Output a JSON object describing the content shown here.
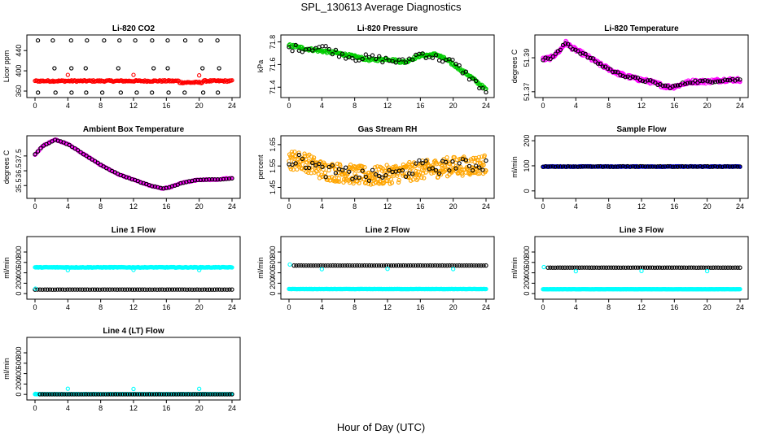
{
  "figure": {
    "title": "SPL_130613  Average Diagnostics",
    "xlabel": "Hour of Day (UTC)"
  },
  "colors": {
    "black": "#000000",
    "red": "#ff0000",
    "green": "#00cc00",
    "magenta": "#ff00ff",
    "orange": "#ffa500",
    "blue": "#0000ff",
    "cyan": "#00ffff"
  },
  "chart_data": [
    {
      "type": "scatter",
      "title": "Li-820 CO2",
      "ylabel": "Licor ppm",
      "xlim": [
        0,
        24
      ],
      "ylim": [
        352,
        466
      ],
      "xticks": [
        "0",
        "4",
        "8",
        "12",
        "16",
        "20",
        "24"
      ],
      "yticks": [
        "360",
        "400",
        "440"
      ],
      "series": [
        {
          "color": "black",
          "pattern": "levels",
          "levels": [
            357,
            405,
            460
          ],
          "x_step": 2,
          "x_start": 0.1
        },
        {
          "color": "red",
          "pattern": "flat",
          "base": 380,
          "bump": 1.5,
          "dip_at": 19,
          "dip": -3
        },
        {
          "color": "red",
          "pattern": "points",
          "x": [
            4,
            12,
            20
          ],
          "y": [
            392,
            392,
            391
          ]
        }
      ]
    },
    {
      "type": "scatter",
      "title": "Li-820 Pressure",
      "ylabel": "kPa",
      "xlim": [
        0,
        24
      ],
      "ylim": [
        71.33,
        71.84
      ],
      "xticks": [
        "0",
        "4",
        "8",
        "12",
        "16",
        "20",
        "24"
      ],
      "yticks": [
        "71.4",
        "71.6",
        "71.8"
      ],
      "series": [
        {
          "color": "green",
          "pattern": "curve",
          "x": [
            0,
            2,
            4,
            6,
            8,
            10,
            12,
            14,
            16,
            18,
            19,
            20,
            22,
            24
          ],
          "y": [
            71.77,
            71.74,
            71.72,
            71.7,
            71.67,
            71.64,
            71.65,
            71.62,
            71.68,
            71.69,
            71.65,
            71.6,
            71.5,
            71.38
          ],
          "noise": 0.012,
          "density": 240
        },
        {
          "color": "black",
          "pattern": "curve",
          "x": [
            0,
            2,
            4,
            6,
            8,
            10,
            12,
            14,
            16,
            18,
            19,
            20,
            22,
            24
          ],
          "y": [
            71.75,
            71.74,
            71.76,
            71.7,
            71.66,
            71.66,
            71.64,
            71.62,
            71.7,
            71.66,
            71.64,
            71.62,
            71.49,
            71.36
          ],
          "noise": 0.03,
          "density": 60
        }
      ]
    },
    {
      "type": "scatter",
      "title": "Li-820 Temperature",
      "ylabel": "degrees C",
      "xlim": [
        0,
        24
      ],
      "ylim": [
        51.368,
        51.402
      ],
      "xticks": [
        "0",
        "4",
        "8",
        "12",
        "16",
        "20",
        "24"
      ],
      "yticks": [
        "51.37",
        "51.39"
      ],
      "series": [
        {
          "color": "magenta",
          "pattern": "curve",
          "x": [
            0,
            1,
            2,
            2.8,
            3.5,
            5,
            7,
            9,
            11,
            13,
            15,
            16,
            18,
            20,
            22,
            24
          ],
          "y": [
            51.389,
            51.39,
            51.394,
            51.399,
            51.396,
            51.392,
            51.386,
            51.381,
            51.378,
            51.376,
            51.373,
            51.373,
            51.376,
            51.376,
            51.377,
            51.377
          ],
          "noise": 0.0012,
          "density": 260
        },
        {
          "color": "black",
          "pattern": "curve",
          "x": [
            0,
            1,
            2,
            2.8,
            3.5,
            5,
            7,
            9,
            11,
            13,
            15,
            16,
            18,
            20,
            22,
            24
          ],
          "y": [
            51.389,
            51.39,
            51.394,
            51.399,
            51.396,
            51.392,
            51.386,
            51.381,
            51.378,
            51.376,
            51.373,
            51.373,
            51.376,
            51.376,
            51.377,
            51.377
          ],
          "noise": 0.0009,
          "density": 80
        }
      ]
    },
    {
      "type": "scatter",
      "title": "Ambient Box Temperature",
      "ylabel": "degrees C",
      "xlim": [
        0,
        24
      ],
      "ylim": [
        34.8,
        38.7
      ],
      "xticks": [
        "0",
        "4",
        "8",
        "12",
        "16",
        "20",
        "24"
      ],
      "yticks": [
        "35.5",
        "36.5",
        "37.5"
      ],
      "series": [
        {
          "color": "magenta",
          "pattern": "curve",
          "x": [
            0,
            1,
            2.5,
            4,
            6,
            8,
            10,
            12,
            14,
            15.5,
            16.5,
            18,
            20,
            22,
            24
          ],
          "y": [
            37.6,
            38.2,
            38.6,
            38.3,
            37.6,
            36.9,
            36.3,
            35.9,
            35.5,
            35.3,
            35.4,
            35.7,
            35.9,
            35.9,
            36.0
          ],
          "noise": 0.03,
          "density": 200
        },
        {
          "color": "black",
          "pattern": "curve",
          "x": [
            0,
            1,
            2.5,
            4,
            6,
            8,
            10,
            12,
            14,
            15.5,
            16.5,
            18,
            20,
            22,
            24
          ],
          "y": [
            37.6,
            38.2,
            38.6,
            38.3,
            37.6,
            36.9,
            36.3,
            35.9,
            35.5,
            35.3,
            35.4,
            35.7,
            35.9,
            35.9,
            36.0
          ],
          "noise": 0.02,
          "density": 70
        }
      ]
    },
    {
      "type": "scatter",
      "title": "Gas Stream RH",
      "ylabel": "percent",
      "xlim": [
        0,
        24
      ],
      "ylim": [
        1.41,
        1.68
      ],
      "xticks": [
        "0",
        "4",
        "8",
        "12",
        "16",
        "20",
        "24"
      ],
      "yticks": [
        "1.45",
        "1.55",
        "1.65"
      ],
      "series": [
        {
          "color": "orange",
          "pattern": "curve",
          "x": [
            0,
            2,
            4,
            6,
            8,
            10,
            12,
            14,
            16,
            18,
            20,
            22,
            24
          ],
          "y": [
            1.58,
            1.57,
            1.53,
            1.52,
            1.51,
            1.5,
            1.51,
            1.52,
            1.53,
            1.54,
            1.55,
            1.55,
            1.56
          ],
          "noise": 0.045,
          "density": 420
        },
        {
          "color": "black",
          "pattern": "curve",
          "x": [
            0,
            2,
            4,
            6,
            8,
            10,
            12,
            14,
            16,
            18,
            20,
            22,
            24
          ],
          "y": [
            1.58,
            1.57,
            1.53,
            1.52,
            1.51,
            1.5,
            1.51,
            1.52,
            1.55,
            1.54,
            1.56,
            1.55,
            1.56
          ],
          "noise": 0.03,
          "density": 60
        }
      ]
    },
    {
      "type": "scatter",
      "title": "Sample Flow",
      "ylabel": "ml/min",
      "xlim": [
        0,
        24
      ],
      "ylim": [
        -20,
        210
      ],
      "xticks": [
        "0",
        "4",
        "8",
        "12",
        "16",
        "20",
        "24"
      ],
      "yticks": [
        "0",
        "100",
        "200"
      ],
      "series": [
        {
          "color": "blue",
          "pattern": "flat",
          "base": 97,
          "bump": 1.2,
          "density": 240
        },
        {
          "color": "black",
          "pattern": "flat",
          "base": 97,
          "bump": 1.2,
          "density": 80
        }
      ]
    },
    {
      "type": "scatter",
      "title": "Line 1 Flow",
      "ylabel": "ml/min",
      "xlim": [
        0,
        24
      ],
      "ylim": [
        -60,
        1050
      ],
      "xticks": [
        "0",
        "4",
        "8",
        "12",
        "16",
        "20",
        "24"
      ],
      "yticks": [
        "0",
        "200",
        "400",
        "600",
        "800"
      ],
      "series": [
        {
          "color": "cyan",
          "pattern": "flat",
          "base": 505,
          "bump": 6,
          "density": 240
        },
        {
          "color": "cyan",
          "pattern": "points",
          "x": [
            4,
            12,
            20
          ],
          "y": [
            450,
            455,
            452
          ]
        },
        {
          "color": "black",
          "pattern": "flat",
          "base": 78,
          "bump": 1,
          "density": 80
        },
        {
          "color": "cyan",
          "pattern": "points",
          "x": [
            0.05
          ],
          "y": [
            95
          ]
        }
      ]
    },
    {
      "type": "scatter",
      "title": "Line 2 Flow",
      "ylabel": "ml/min",
      "xlim": [
        0,
        24
      ],
      "ylim": [
        -60,
        1050
      ],
      "xticks": [
        "0",
        "4",
        "8",
        "12",
        "16",
        "20",
        "24"
      ],
      "yticks": [
        "0",
        "200",
        "400",
        "600",
        "800"
      ],
      "series": [
        {
          "color": "black",
          "pattern": "flat",
          "base": 540,
          "bump": 1,
          "density": 80,
          "x_start": 0.6
        },
        {
          "color": "cyan",
          "pattern": "points",
          "x": [
            0.1,
            4,
            12,
            20
          ],
          "y": [
            560,
            470,
            475,
            472
          ]
        },
        {
          "color": "cyan",
          "pattern": "flat",
          "base": 88,
          "bump": 2,
          "density": 240
        }
      ]
    },
    {
      "type": "scatter",
      "title": "Line 3 Flow",
      "ylabel": "ml/min",
      "xlim": [
        0,
        24
      ],
      "ylim": [
        -60,
        1050
      ],
      "xticks": [
        "0",
        "4",
        "8",
        "12",
        "16",
        "20",
        "24"
      ],
      "yticks": [
        "0",
        "200",
        "400",
        "600",
        "800"
      ],
      "series": [
        {
          "color": "black",
          "pattern": "flat",
          "base": 500,
          "bump": 1,
          "density": 80,
          "x_start": 0.6
        },
        {
          "color": "cyan",
          "pattern": "points",
          "x": [
            0.1,
            4,
            12,
            20
          ],
          "y": [
            510,
            430,
            435,
            432
          ]
        },
        {
          "color": "cyan",
          "pattern": "flat",
          "base": 85,
          "bump": 2,
          "density": 240
        }
      ]
    },
    {
      "type": "scatter",
      "title": "Line 4 (LT) Flow",
      "ylabel": "ml/min",
      "xlim": [
        0,
        24
      ],
      "ylim": [
        -60,
        1050
      ],
      "xticks": [
        "0",
        "4",
        "8",
        "12",
        "16",
        "20",
        "24"
      ],
      "yticks": [
        "0",
        "200",
        "400",
        "600",
        "800"
      ],
      "series": [
        {
          "color": "cyan",
          "pattern": "flat",
          "base": 5,
          "bump": 1,
          "density": 240
        },
        {
          "color": "cyan",
          "pattern": "points",
          "x": [
            0.05,
            4,
            12,
            20
          ],
          "y": [
            12,
            110,
            105,
            108
          ]
        },
        {
          "color": "black",
          "pattern": "flat",
          "base": 3,
          "bump": 0.5,
          "density": 80,
          "x_start": 0.6
        }
      ]
    }
  ]
}
